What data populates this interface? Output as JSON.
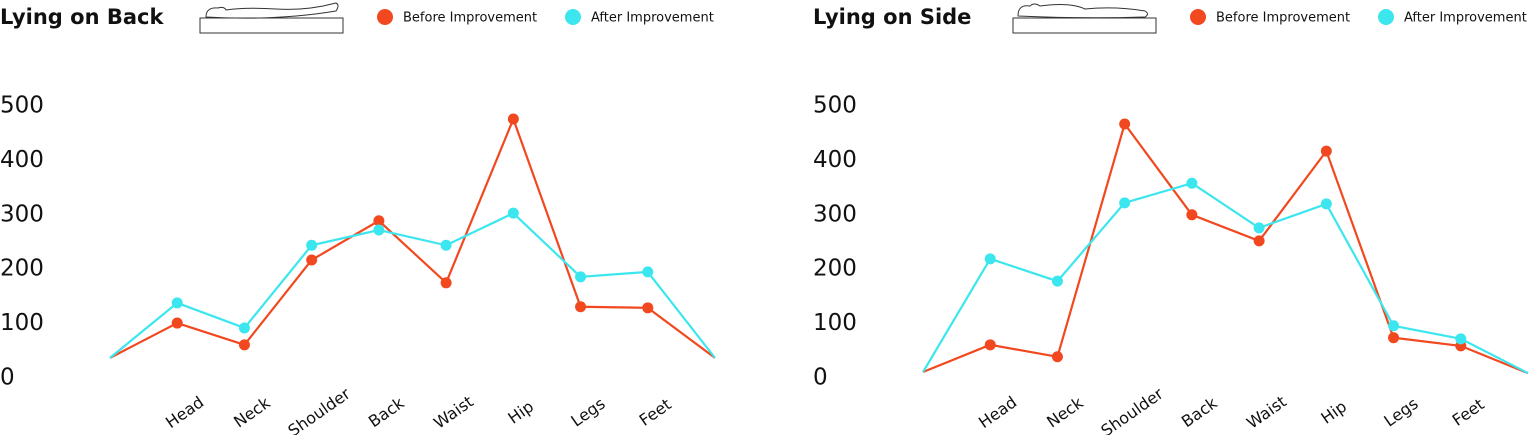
{
  "chart_data": [
    {
      "type": "line",
      "title": "Lying on Back",
      "categories": [
        null,
        "Head",
        "Neck",
        "Shoulder",
        "Back",
        "Waist",
        "Hip",
        "Legs",
        "Feet",
        null
      ],
      "series": [
        {
          "name": "Before Improvement",
          "color": "#f2481f",
          "values": [
            37,
            101,
            61,
            217,
            289,
            175,
            476,
            131,
            129,
            37
          ]
        },
        {
          "name": "After Improvement",
          "color": "#3ce6ee",
          "values": [
            37,
            138,
            92,
            244,
            272,
            244,
            303,
            186,
            195,
            37
          ]
        }
      ],
      "ylim": [
        0,
        500
      ],
      "yticks": [
        0,
        100,
        200,
        300,
        400,
        500
      ],
      "grid": false
    },
    {
      "type": "line",
      "title": "Lying on Side",
      "categories": [
        null,
        "Head",
        "Neck",
        "Shoulder",
        "Back",
        "Waist",
        "Hip",
        "Legs",
        "Feet",
        null
      ],
      "series": [
        {
          "name": "Before Improvement",
          "color": "#f2481f",
          "values": [
            11,
            61,
            39,
            467,
            300,
            252,
            417,
            74,
            59,
            9
          ]
        },
        {
          "name": "After Improvement",
          "color": "#3ce6ee",
          "values": [
            11,
            219,
            178,
            322,
            358,
            276,
            320,
            96,
            72,
            9
          ]
        }
      ],
      "ylim": [
        0,
        500
      ],
      "yticks": [
        0,
        100,
        200,
        300,
        400,
        500
      ],
      "grid": false
    }
  ]
}
